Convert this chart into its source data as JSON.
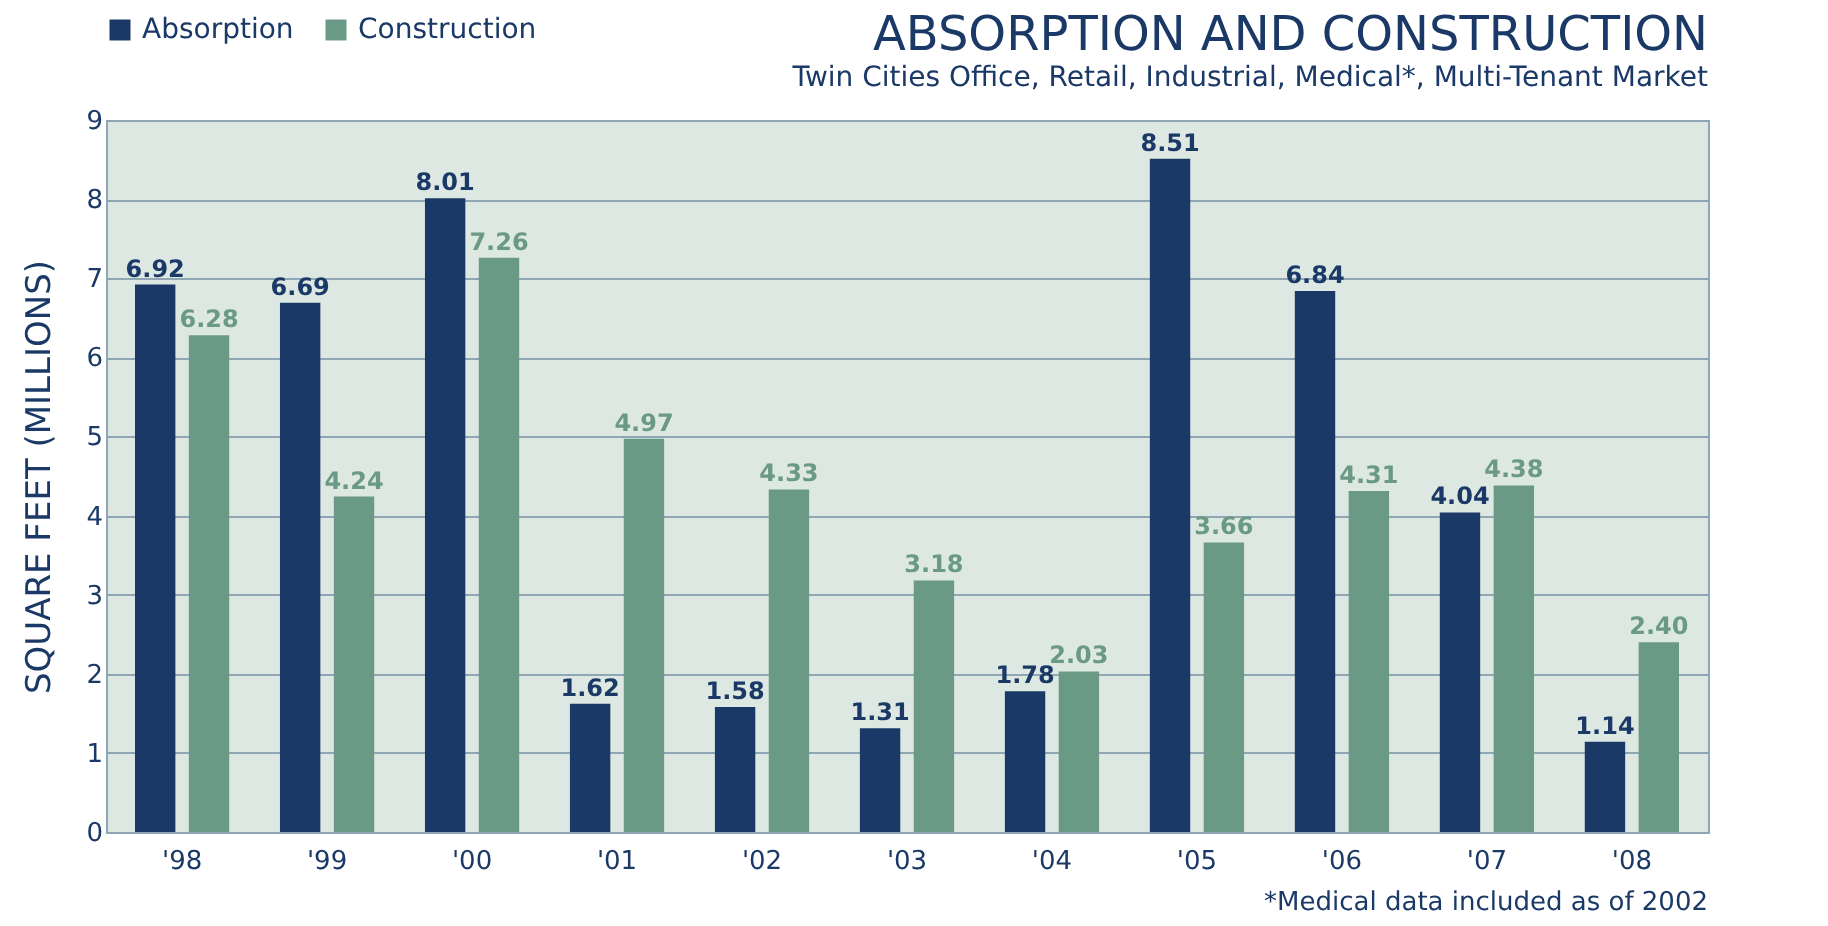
{
  "chart_data": {
    "type": "bar",
    "title": "ABSORPTION AND CONSTRUCTION",
    "subtitle": "Twin Cities Office, Retail, Industrial, Medical*, Multi-Tenant Market",
    "ylabel": "SQUARE FEET (MILLIONS)",
    "categories": [
      "'98",
      "'99",
      "'00",
      "'01",
      "'02",
      "'03",
      "'04",
      "'05",
      "'06",
      "'07",
      "'08"
    ],
    "series": [
      {
        "name": "Absorption",
        "color": "#1b3966",
        "values": [
          6.92,
          6.69,
          8.01,
          1.62,
          1.58,
          1.31,
          1.78,
          8.51,
          6.84,
          4.04,
          1.14
        ],
        "value_labels": [
          "6.92",
          "6.69",
          "8.01",
          "1.62",
          "1.58",
          "1.31",
          "1.78",
          "8.51",
          "6.84",
          "4.04",
          "1.14"
        ]
      },
      {
        "name": "Construction",
        "color": "#6a9a86",
        "values": [
          6.28,
          4.24,
          7.26,
          4.97,
          4.33,
          3.18,
          2.03,
          3.66,
          4.31,
          4.38,
          2.4
        ],
        "value_labels": [
          "6.28",
          "4.24",
          "7.26",
          "4.97",
          "4.33",
          "3.18",
          "2.03",
          "3.66",
          "4.31",
          "4.38",
          "2.40"
        ]
      }
    ],
    "ylim": [
      0,
      9
    ],
    "yticks": [
      0,
      1,
      2,
      3,
      4,
      5,
      6,
      7,
      8,
      9
    ],
    "grid": "y",
    "legend": "top left",
    "annotations": [
      "*Medical data included as of 2002"
    ]
  }
}
